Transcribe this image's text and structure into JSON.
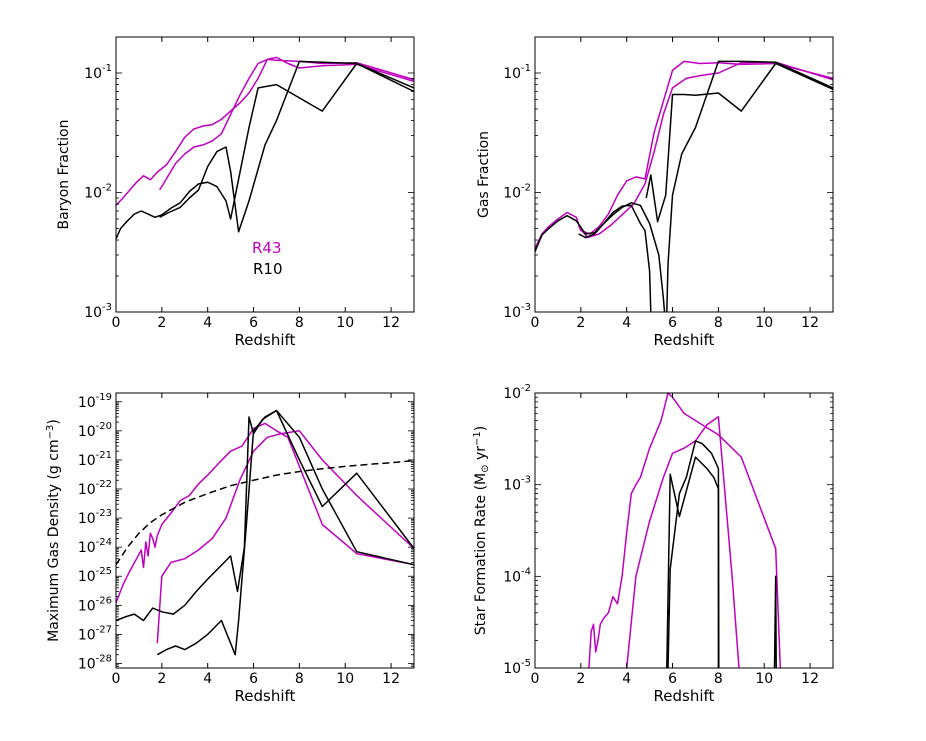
{
  "colors": {
    "R43": "#bf00bf",
    "R10": "#000000",
    "reference": "#000000"
  },
  "legend": {
    "entries": [
      {
        "label": "R43",
        "color": "#bf00bf"
      },
      {
        "label": "R10",
        "color": "#000000"
      }
    ]
  },
  "chart_data": [
    {
      "id": "baryon-fraction",
      "type": "line",
      "xlabel": "Redshift",
      "ylabel": "Baryon Fraction",
      "yscale": "log",
      "xlim": [
        0,
        13
      ],
      "ylim": [
        0.001,
        0.2
      ],
      "xticks": [
        "0",
        "2",
        "4",
        "6",
        "8",
        "10",
        "12"
      ],
      "ytick_exponents": [
        "-3",
        "-2",
        "-1"
      ],
      "legend": [
        "R43",
        "R10"
      ],
      "series": [
        {
          "name": "R43 (a)",
          "color": "#bf00bf",
          "x": [
            0,
            0.3,
            0.6,
            0.9,
            1.2,
            1.5,
            1.8,
            2.2,
            2.6,
            3.0,
            3.4,
            3.8,
            4.2,
            4.6,
            5.0,
            5.4,
            5.8,
            6.2,
            6.6,
            7.0,
            7.5,
            8.0,
            9.0,
            10.5,
            13
          ],
          "y": [
            0.0078,
            0.009,
            0.0105,
            0.0122,
            0.0138,
            0.0128,
            0.0148,
            0.017,
            0.022,
            0.029,
            0.034,
            0.036,
            0.037,
            0.041,
            0.048,
            0.056,
            0.068,
            0.09,
            0.13,
            0.135,
            0.12,
            0.11,
            0.115,
            0.118,
            0.085
          ]
        },
        {
          "name": "R43 (b)",
          "color": "#bf00bf",
          "x": [
            1.9,
            2.2,
            2.6,
            3.0,
            3.4,
            3.8,
            4.2,
            4.6,
            5.0,
            5.4,
            5.8,
            6.2,
            6.6,
            7.0,
            8.0,
            9.0,
            10.5,
            13
          ],
          "y": [
            0.0105,
            0.013,
            0.0175,
            0.021,
            0.024,
            0.025,
            0.027,
            0.031,
            0.045,
            0.065,
            0.09,
            0.12,
            0.13,
            0.128,
            0.125,
            0.12,
            0.122,
            0.088
          ]
        },
        {
          "name": "R10 (a)",
          "color": "#000000",
          "x": [
            0,
            0.2,
            0.5,
            0.8,
            1.1,
            1.4,
            1.7,
            2.0,
            2.4,
            2.8,
            3.2,
            3.6,
            4.0,
            4.4,
            4.8,
            5.0,
            5.4,
            5.8,
            6.2,
            7.0,
            9.0,
            10.5,
            13
          ],
          "y": [
            0.0041,
            0.005,
            0.0058,
            0.0066,
            0.007,
            0.0066,
            0.0062,
            0.0065,
            0.0074,
            0.0082,
            0.0102,
            0.0118,
            0.0122,
            0.0112,
            0.0085,
            0.006,
            0.0145,
            0.035,
            0.075,
            0.08,
            0.048,
            0.12,
            0.07
          ]
        },
        {
          "name": "R10 (b)",
          "color": "#000000",
          "x": [
            1.9,
            2.3,
            2.8,
            3.2,
            3.6,
            4.0,
            4.4,
            4.8,
            5.0,
            5.35,
            5.8,
            6.5,
            7.0,
            8.0,
            10.5,
            13
          ],
          "y": [
            0.0062,
            0.0068,
            0.0075,
            0.009,
            0.0105,
            0.0165,
            0.022,
            0.024,
            0.015,
            0.0047,
            0.0085,
            0.025,
            0.04,
            0.125,
            0.12,
            0.075
          ]
        }
      ]
    },
    {
      "id": "gas-fraction",
      "type": "line",
      "xlabel": "Redshift",
      "ylabel": "Gas Fraction",
      "yscale": "log",
      "xlim": [
        0,
        13
      ],
      "ylim": [
        0.001,
        0.2
      ],
      "xticks": [
        "0",
        "2",
        "4",
        "6",
        "8",
        "10",
        "12"
      ],
      "ytick_exponents": [
        "-3",
        "-2",
        "-1"
      ],
      "series": [
        {
          "name": "R43 (a)",
          "color": "#bf00bf",
          "x": [
            0,
            0.3,
            0.6,
            1.0,
            1.4,
            1.8,
            2.0,
            2.4,
            2.8,
            3.2,
            3.6,
            4.0,
            4.4,
            4.8,
            5.2,
            5.6,
            6.0,
            6.5,
            7.2,
            8.0,
            9.0,
            10.5,
            13
          ],
          "y": [
            0.0034,
            0.0045,
            0.0052,
            0.006,
            0.0068,
            0.0062,
            0.0048,
            0.0045,
            0.0052,
            0.0066,
            0.0095,
            0.0125,
            0.0135,
            0.013,
            0.032,
            0.058,
            0.105,
            0.125,
            0.12,
            0.122,
            0.118,
            0.12,
            0.09
          ]
        },
        {
          "name": "R43 (b)",
          "color": "#bf00bf",
          "x": [
            1.9,
            2.3,
            2.8,
            3.3,
            3.8,
            4.3,
            4.8,
            5.2,
            5.6,
            6.0,
            6.6,
            7.2,
            8.0,
            9.0,
            10.5,
            13
          ],
          "y": [
            0.0052,
            0.0042,
            0.0045,
            0.0053,
            0.0065,
            0.008,
            0.0118,
            0.022,
            0.045,
            0.075,
            0.09,
            0.095,
            0.1,
            0.122,
            0.123,
            0.088
          ]
        },
        {
          "name": "R10 (a)",
          "color": "#000000",
          "x": [
            0,
            0.3,
            0.6,
            1.0,
            1.4,
            1.8,
            2.2,
            2.6,
            3.0,
            3.4,
            3.8,
            4.2,
            4.6,
            4.8,
            5.0,
            5.05
          ],
          "y": [
            0.0032,
            0.0044,
            0.005,
            0.0058,
            0.0064,
            0.0058,
            0.0045,
            0.0046,
            0.0055,
            0.0068,
            0.0077,
            0.0078,
            0.0055,
            0.0048,
            0.0022,
            0.00095
          ]
        },
        {
          "name": "R10 (b)",
          "color": "#000000",
          "x": [
            1.9,
            2.2,
            2.6,
            3.0,
            3.4,
            3.8,
            4.2,
            4.6,
            5.0,
            5.4,
            5.6,
            5.65
          ],
          "y": [
            0.0045,
            0.0042,
            0.0045,
            0.0055,
            0.0065,
            0.0075,
            0.0082,
            0.0078,
            0.0055,
            0.003,
            0.0013,
            0.00095
          ]
        },
        {
          "name": "R10 (c)",
          "color": "#000000",
          "x": [
            4.85,
            5.05,
            5.35,
            5.7,
            6.0,
            6.5,
            7.0,
            8.0,
            9.0,
            10.5,
            13
          ],
          "y": [
            0.009,
            0.014,
            0.0057,
            0.0095,
            0.066,
            0.066,
            0.065,
            0.068,
            0.048,
            0.12,
            0.073
          ]
        },
        {
          "name": "R10 (d)",
          "color": "#000000",
          "x": [
            5.75,
            5.8,
            6.0,
            6.4,
            7.0,
            8.0,
            9.0,
            10.5,
            13
          ],
          "y": [
            0.00095,
            0.0025,
            0.0095,
            0.021,
            0.035,
            0.125,
            0.125,
            0.123,
            0.075
          ]
        }
      ]
    },
    {
      "id": "max-gas-density",
      "type": "line",
      "xlabel": "Redshift",
      "ylabel": "Maximum Gas Density (g cm",
      "ylabel_sup": "−3",
      "ylabel_suffix": ")",
      "yscale": "log",
      "xlim": [
        0,
        13
      ],
      "ylim": [
        7e-29,
        2e-19
      ],
      "xticks": [
        "0",
        "2",
        "4",
        "6",
        "8",
        "10",
        "12"
      ],
      "ytick_exponents": [
        "-28",
        "-27",
        "-26",
        "-25",
        "-24",
        "-23",
        "-22",
        "-21",
        "-20",
        "-19"
      ],
      "series": [
        {
          "name": "R43 (a)",
          "color": "#bf00bf",
          "x": [
            0,
            0.3,
            0.6,
            0.9,
            1.1,
            1.2,
            1.3,
            1.4,
            1.5,
            1.6,
            1.7,
            1.8,
            2.0,
            2.4,
            2.8,
            3.2,
            3.6,
            4.0,
            4.5,
            5.0,
            5.5,
            6.0,
            6.5,
            7.0,
            7.5,
            8.0,
            9.0,
            10.5,
            13
          ],
          "y": [
            1.2e-26,
            5e-26,
            1.5e-25,
            4e-25,
            8e-25,
            2e-25,
            1.5e-24,
            5e-25,
            3e-24,
            2e-24,
            1e-24,
            2.5e-24,
            6e-24,
            1.5e-23,
            4e-23,
            6e-23,
            1.5e-22,
            3e-22,
            8e-22,
            2e-21,
            3e-21,
            1.2e-20,
            1.8e-20,
            1e-20,
            6e-21,
            6e-22,
            6e-24,
            6e-25,
            2.5e-25
          ]
        },
        {
          "name": "R43 (b)",
          "color": "#bf00bf",
          "x": [
            1.8,
            2.0,
            2.4,
            3.0,
            3.6,
            4.2,
            4.8,
            5.4,
            6.0,
            6.6,
            7.2,
            8.0,
            9.0,
            10.5,
            13
          ],
          "y": [
            5e-28,
            1e-25,
            3e-25,
            4e-25,
            8e-25,
            2e-24,
            1e-23,
            2e-22,
            2e-21,
            6e-21,
            8e-21,
            1e-20,
            1e-21,
            6e-23,
            9e-25
          ]
        },
        {
          "name": "R10 (a)",
          "color": "#000000",
          "x": [
            0,
            0.4,
            0.8,
            1.2,
            1.6,
            2.0,
            2.5,
            3.0,
            3.5,
            4.0,
            4.5,
            5.0,
            5.3,
            5.6,
            5.8,
            6.0,
            6.4,
            7.0,
            8.0,
            9.0,
            10.5,
            13
          ],
          "y": [
            3e-27,
            4e-27,
            5e-27,
            3e-27,
            8e-27,
            6e-27,
            5e-27,
            1e-26,
            3e-26,
            8e-26,
            2e-25,
            5e-25,
            3e-26,
            1e-24,
            3e-20,
            8e-21,
            2.5e-20,
            5e-20,
            1e-21,
            2.5e-23,
            3.5e-22,
            9e-25
          ]
        },
        {
          "name": "R10 (b)",
          "color": "#000000",
          "x": [
            1.8,
            2.2,
            2.6,
            3.0,
            3.5,
            4.0,
            4.6,
            5.0,
            5.2,
            5.35,
            5.7,
            6.0,
            6.5,
            7.0,
            8.0,
            9.0,
            10.5,
            13
          ],
          "y": [
            2e-28,
            3e-28,
            4e-28,
            3e-28,
            5e-28,
            1e-27,
            3e-27,
            5e-28,
            2e-28,
            3e-27,
            8e-24,
            1e-20,
            3e-20,
            5e-20,
            6e-21,
            1e-22,
            7e-25,
            2.5e-25
          ]
        },
        {
          "name": "Reference (dashed)",
          "color": "#000000",
          "dashed": true,
          "x": [
            0,
            0.5,
            1.0,
            1.5,
            2.0,
            3.0,
            4.0,
            5.0,
            6.0,
            7.0,
            8.0,
            9.0,
            10.0,
            11.0,
            12.0,
            13.0
          ],
          "y": [
            2.5e-25,
            1e-24,
            3e-24,
            7e-24,
            1.3e-23,
            3.5e-23,
            7e-23,
            1.3e-22,
            2e-22,
            3e-22,
            4e-22,
            5e-22,
            6e-22,
            7e-22,
            8e-22,
            9.5e-22
          ]
        }
      ]
    },
    {
      "id": "star-formation-rate",
      "type": "line",
      "xlabel": "Redshift",
      "ylabel": "Star Formation Rate (M",
      "ylabel_sub": "⊙",
      "ylabel_mid": " yr",
      "ylabel_sup": "−1",
      "ylabel_suffix": ")",
      "yscale": "log",
      "xlim": [
        0,
        13
      ],
      "ylim": [
        1e-05,
        0.01
      ],
      "xticks": [
        "0",
        "2",
        "4",
        "6",
        "8",
        "10",
        "12"
      ],
      "ytick_exponents": [
        "-5",
        "-4",
        "-3",
        "-2"
      ],
      "series": [
        {
          "name": "R43 (a)",
          "color": "#bf00bf",
          "x": [
            2.35,
            2.45,
            2.55,
            2.65,
            2.75,
            2.85,
            3.0,
            3.2,
            3.4,
            3.6,
            3.8,
            4.0,
            4.2,
            4.4,
            4.6,
            5.0,
            5.5,
            5.8,
            6.0,
            6.5,
            7.0,
            8.0,
            9.0,
            10.5,
            10.7
          ],
          "y": [
            1e-05,
            2.5e-05,
            3e-05,
            1.5e-05,
            2e-05,
            3e-05,
            3.5e-05,
            4e-05,
            6e-05,
            5e-05,
            0.0001,
            0.0003,
            0.0008,
            0.001,
            0.0012,
            0.0025,
            0.005,
            0.01,
            0.009,
            0.006,
            0.005,
            0.0035,
            0.002,
            0.0002,
            1e-05
          ]
        },
        {
          "name": "R43 (b)",
          "color": "#bf00bf",
          "x": [
            4.0,
            4.4,
            5.0,
            5.6,
            6.0,
            6.5,
            7.0,
            7.5,
            8.0,
            8.6,
            8.9
          ],
          "y": [
            1e-05,
            0.0001,
            0.0004,
            0.0012,
            0.0022,
            0.0025,
            0.003,
            0.0045,
            0.0055,
            0.0001,
            1e-05
          ]
        },
        {
          "name": "R10 (a)",
          "color": "#000000",
          "x": [
            5.75,
            5.82,
            5.9,
            6.3,
            7.0,
            7.5,
            7.8,
            8.0,
            8.0
          ],
          "y": [
            1e-05,
            0.0001,
            0.0013,
            0.00045,
            0.002,
            0.0015,
            0.0012,
            0.0009,
            1e-05
          ]
        },
        {
          "name": "R10 (b)",
          "color": "#000000",
          "x": [
            5.8,
            5.9,
            6.3,
            6.6,
            7.0,
            7.3,
            7.7,
            8.0,
            8.02
          ],
          "y": [
            1e-05,
            0.00012,
            0.0008,
            0.0012,
            0.003,
            0.0028,
            0.0022,
            0.0015,
            1e-05
          ]
        },
        {
          "name": "R10 (c)",
          "color": "#000000",
          "x": [
            10.45,
            10.5,
            10.52
          ],
          "y": [
            1e-05,
            0.0001,
            1e-05
          ]
        }
      ]
    }
  ]
}
